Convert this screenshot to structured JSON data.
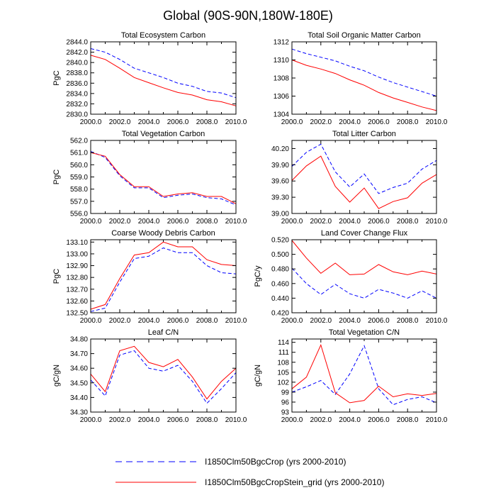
{
  "figure_title": "Global (90S-90N,180W-180E)",
  "legend": {
    "dashed_label": "I1850Clm50BgcCrop (yrs 2000-2010)",
    "solid_label": "I1850Clm50BgcCropStein_grid (yrs 2000-2010)"
  },
  "colors": {
    "dashed": "#0000ff",
    "solid": "#ff0000",
    "axis": "#000000"
  },
  "chart_data": [
    {
      "type": "line",
      "title": "Total Ecosystem Carbon",
      "ylabel": "PgC",
      "x": [
        2000,
        2001,
        2002,
        2003,
        2004,
        2005,
        2006,
        2007,
        2008,
        2009,
        2010
      ],
      "xticks": [
        "2000.0",
        "2002.0",
        "2004.0",
        "2006.0",
        "2008.0",
        "2010.0"
      ],
      "ylim": [
        2830,
        2844
      ],
      "yticks": [
        "2830.0",
        "2832.0",
        "2834.0",
        "2836.0",
        "2838.0",
        "2840.0",
        "2842.0",
        "2844.0"
      ],
      "grid": false,
      "series": [
        {
          "name": "I1850Clm50BgcCrop (yrs 2000-2010)",
          "style": "dashed",
          "values": [
            2842.7,
            2842.0,
            2840.6,
            2838.9,
            2838.0,
            2837.1,
            2836.0,
            2835.4,
            2834.4,
            2834.1,
            2833.2
          ]
        },
        {
          "name": "I1850Clm50BgcCropStein_grid (yrs 2000-2010)",
          "style": "solid",
          "values": [
            2841.4,
            2840.6,
            2838.9,
            2837.1,
            2836.1,
            2835.1,
            2834.2,
            2833.7,
            2832.8,
            2832.4,
            2831.6
          ]
        }
      ]
    },
    {
      "type": "line",
      "title": "Total Soil Organic Matter Carbon",
      "ylabel": "",
      "x": [
        2000,
        2001,
        2002,
        2003,
        2004,
        2005,
        2006,
        2007,
        2008,
        2009,
        2010
      ],
      "xticks": [
        "2000.0",
        "2002.0",
        "2004.0",
        "2006.0",
        "2008.0",
        "2010.0"
      ],
      "ylim": [
        1304,
        1312
      ],
      "yticks": [
        "1304",
        "1306",
        "1308",
        "1310",
        "1312"
      ],
      "grid": false,
      "series": [
        {
          "name": "I1850Clm50BgcCrop (yrs 2000-2010)",
          "style": "dashed",
          "values": [
            1311.2,
            1310.7,
            1310.3,
            1309.9,
            1309.3,
            1308.8,
            1308.1,
            1307.5,
            1307.0,
            1306.5,
            1306.0
          ]
        },
        {
          "name": "I1850Clm50BgcCropStein_grid (yrs 2000-2010)",
          "style": "solid",
          "values": [
            1310.0,
            1309.4,
            1309.0,
            1308.5,
            1307.8,
            1307.2,
            1306.4,
            1305.8,
            1305.3,
            1304.8,
            1304.4
          ]
        }
      ]
    },
    {
      "type": "line",
      "title": "Total Vegetation Carbon",
      "ylabel": "PgC",
      "x": [
        2000,
        2001,
        2002,
        2003,
        2004,
        2005,
        2006,
        2007,
        2008,
        2009,
        2010
      ],
      "xticks": [
        "2000.0",
        "2002.0",
        "2004.0",
        "2006.0",
        "2008.0",
        "2010.0"
      ],
      "ylim": [
        556,
        562
      ],
      "yticks": [
        "556.0",
        "557.0",
        "558.0",
        "559.0",
        "560.0",
        "561.0",
        "562.0"
      ],
      "grid": false,
      "series": [
        {
          "name": "I1850Clm50BgcCrop (yrs 2000-2010)",
          "style": "dashed",
          "values": [
            561.1,
            560.6,
            559.1,
            558.1,
            558.1,
            557.3,
            557.5,
            557.6,
            557.3,
            557.2,
            556.7
          ]
        },
        {
          "name": "I1850Clm50BgcCropStein_grid (yrs 2000-2010)",
          "style": "solid",
          "values": [
            561.0,
            560.7,
            559.2,
            558.2,
            558.2,
            557.4,
            557.6,
            557.7,
            557.4,
            557.4,
            556.8
          ]
        }
      ]
    },
    {
      "type": "line",
      "title": "Total Litter Carbon",
      "ylabel": "",
      "x": [
        2000,
        2001,
        2002,
        2003,
        2004,
        2005,
        2006,
        2007,
        2008,
        2009,
        2010
      ],
      "xticks": [
        "2000.0",
        "2002.0",
        "2004.0",
        "2006.0",
        "2008.0",
        "2010.0"
      ],
      "ylim": [
        39.0,
        40.35
      ],
      "yticks": [
        "39.00",
        "39.30",
        "39.60",
        "39.90",
        "40.20"
      ],
      "grid": false,
      "series": [
        {
          "name": "I1850Clm50BgcCrop (yrs 2000-2010)",
          "style": "dashed",
          "values": [
            39.87,
            40.13,
            40.28,
            39.77,
            39.49,
            39.73,
            39.37,
            39.48,
            39.56,
            39.82,
            39.98
          ]
        },
        {
          "name": "I1850Clm50BgcCropStein_grid (yrs 2000-2010)",
          "style": "solid",
          "values": [
            39.61,
            39.88,
            40.06,
            39.5,
            39.21,
            39.47,
            39.09,
            39.22,
            39.29,
            39.56,
            39.72
          ]
        }
      ]
    },
    {
      "type": "line",
      "title": "Coarse Woody Debris Carbon",
      "ylabel": "PgC",
      "x": [
        2000,
        2001,
        2002,
        2003,
        2004,
        2005,
        2006,
        2007,
        2008,
        2009,
        2010
      ],
      "xticks": [
        "2000.0",
        "2002.0",
        "2004.0",
        "2006.0",
        "2008.0",
        "2010.0"
      ],
      "ylim": [
        132.5,
        133.12
      ],
      "yticks": [
        "132.50",
        "132.60",
        "132.70",
        "132.80",
        "132.90",
        "133.00",
        "133.10"
      ],
      "grid": false,
      "series": [
        {
          "name": "I1850Clm50BgcCrop (yrs 2000-2010)",
          "style": "dashed",
          "values": [
            132.51,
            132.54,
            132.76,
            132.96,
            132.98,
            133.05,
            133.01,
            133.01,
            132.9,
            132.84,
            132.83
          ]
        },
        {
          "name": "I1850Clm50BgcCropStein_grid (yrs 2000-2010)",
          "style": "solid",
          "values": [
            132.53,
            132.57,
            132.79,
            132.99,
            133.01,
            133.1,
            133.06,
            133.06,
            132.95,
            132.91,
            132.9
          ]
        }
      ]
    },
    {
      "type": "line",
      "title": "Land Cover Change Flux",
      "ylabel": "PgC/y",
      "x": [
        2000,
        2001,
        2002,
        2003,
        2004,
        2005,
        2006,
        2007,
        2008,
        2009,
        2010
      ],
      "xticks": [
        "2000.0",
        "2002.0",
        "2004.0",
        "2006.0",
        "2008.0",
        "2010.0"
      ],
      "ylim": [
        0.42,
        0.52
      ],
      "yticks": [
        "0.420",
        "0.440",
        "0.460",
        "0.480",
        "0.500",
        "0.520"
      ],
      "grid": false,
      "series": [
        {
          "name": "I1850Clm50BgcCrop (yrs 2000-2010)",
          "style": "dashed",
          "values": [
            0.481,
            0.46,
            0.445,
            0.459,
            0.446,
            0.44,
            0.452,
            0.447,
            0.44,
            0.45,
            0.44
          ]
        },
        {
          "name": "I1850Clm50BgcCropStein_grid (yrs 2000-2010)",
          "style": "solid",
          "values": [
            0.519,
            0.495,
            0.474,
            0.488,
            0.472,
            0.473,
            0.486,
            0.476,
            0.472,
            0.477,
            0.473
          ]
        }
      ]
    },
    {
      "type": "line",
      "title": "Leaf C/N",
      "ylabel": "gC/gN",
      "x": [
        2000,
        2001,
        2002,
        2003,
        2004,
        2005,
        2006,
        2007,
        2008,
        2009,
        2010
      ],
      "xticks": [
        "2000.0",
        "2002.0",
        "2004.0",
        "2006.0",
        "2008.0",
        "2010.0"
      ],
      "ylim": [
        34.3,
        34.8
      ],
      "yticks": [
        "34.30",
        "34.40",
        "34.50",
        "34.60",
        "34.70",
        "34.80"
      ],
      "grid": false,
      "series": [
        {
          "name": "I1850Clm50BgcCrop (yrs 2000-2010)",
          "style": "dashed",
          "values": [
            34.52,
            34.41,
            34.69,
            34.72,
            34.6,
            34.58,
            34.62,
            34.51,
            34.36,
            34.46,
            34.57
          ]
        },
        {
          "name": "I1850Clm50BgcCropStein_grid (yrs 2000-2010)",
          "style": "solid",
          "values": [
            34.56,
            34.44,
            34.72,
            34.75,
            34.64,
            34.61,
            34.66,
            34.54,
            34.39,
            34.51,
            34.6
          ]
        }
      ]
    },
    {
      "type": "line",
      "title": "Total Vegetation C/N",
      "ylabel": "gC/gN",
      "x": [
        2000,
        2001,
        2002,
        2003,
        2004,
        2005,
        2006,
        2007,
        2008,
        2009,
        2010
      ],
      "xticks": [
        "2000.0",
        "2002.0",
        "2004.0",
        "2006.0",
        "2008.0",
        "2010.0"
      ],
      "ylim": [
        93,
        115
      ],
      "yticks": [
        "93",
        "96",
        "99",
        "102",
        "105",
        "108",
        "111",
        "114"
      ],
      "grid": false,
      "series": [
        {
          "name": "I1850Clm50BgcCrop (yrs 2000-2010)",
          "style": "dashed",
          "values": [
            99.0,
            100.6,
            102.5,
            98.3,
            104.5,
            113.0,
            100.0,
            95.2,
            96.8,
            97.6,
            95.8
          ]
        },
        {
          "name": "I1850Clm50BgcCropStein_grid (yrs 2000-2010)",
          "style": "solid",
          "values": [
            100.0,
            103.5,
            113.2,
            98.8,
            95.8,
            96.5,
            100.8,
            97.6,
            98.5,
            98.0,
            98.6
          ]
        }
      ]
    }
  ]
}
